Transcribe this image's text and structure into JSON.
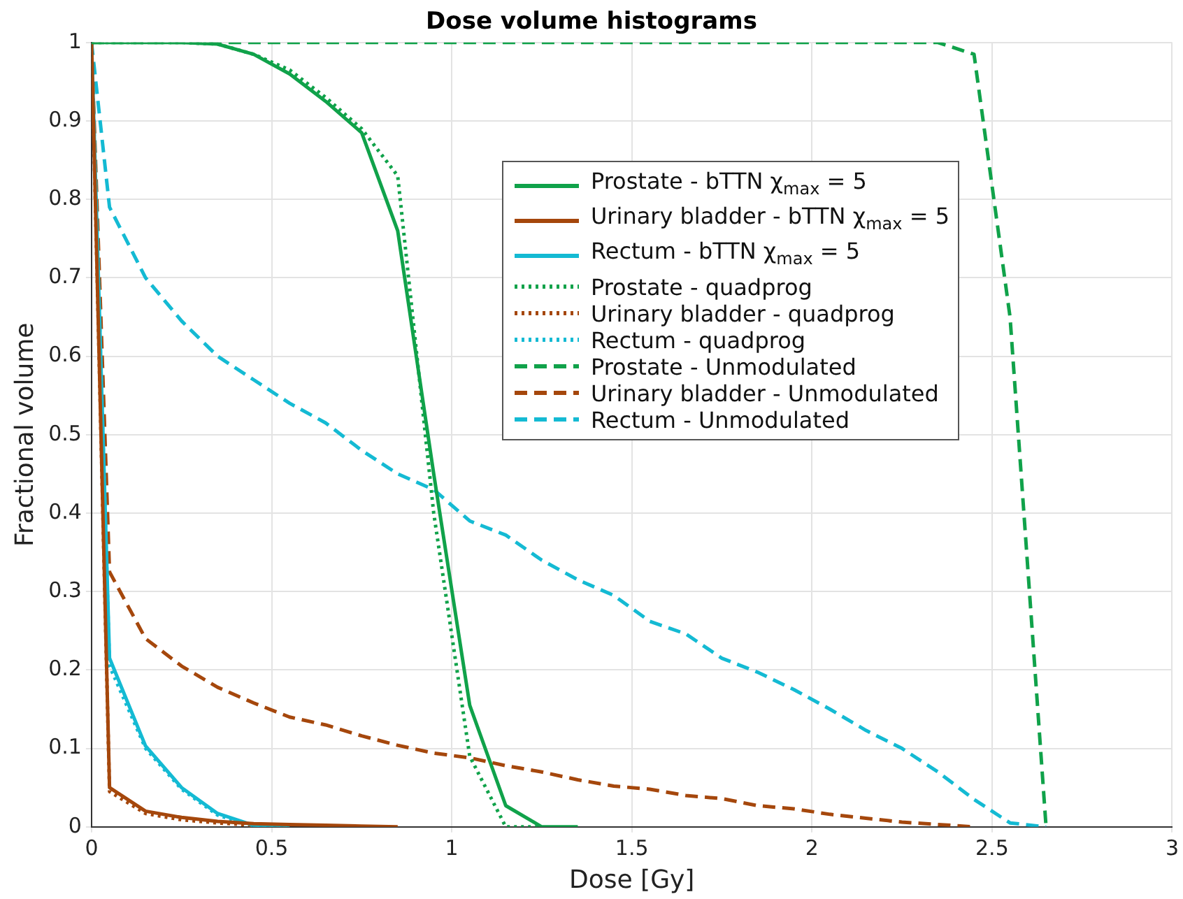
{
  "chart_data": {
    "type": "line",
    "title": "Dose volume histograms",
    "xlabel": "Dose [Gy]",
    "ylabel": "Fractional volume",
    "xlim": [
      0,
      3
    ],
    "xticks": [
      0,
      0.5,
      1,
      1.5,
      2,
      2.5,
      3
    ],
    "ylim": [
      0,
      1
    ],
    "yticks": [
      0,
      0.1,
      0.2,
      0.3,
      0.4,
      0.5,
      0.6,
      0.7,
      0.8,
      0.9,
      1
    ],
    "grid": true,
    "legend": "top right",
    "marker": "none",
    "series": [
      {
        "name": "Prostate - bTTN χ$_{max}$ = 5",
        "color": "#10a24a",
        "line_style": "solid",
        "x": [
          0,
          0.05,
          0.15,
          0.25,
          0.35,
          0.45,
          0.55,
          0.65,
          0.75,
          0.85,
          0.95,
          1.05,
          1.15,
          1.25,
          1.35
        ],
        "values": [
          1,
          1,
          1,
          1,
          0.998,
          0.985,
          0.96,
          0.925,
          0.885,
          0.76,
          0.45,
          0.155,
          0.027,
          0,
          0
        ]
      },
      {
        "name": "Urinary bladder - bTTN χ$_{max}$ = 5",
        "color": "#a5470c",
        "line_style": "solid",
        "x": [
          0,
          0.05,
          0.15,
          0.25,
          0.35,
          0.45,
          0.55,
          0.65,
          0.75,
          0.85
        ],
        "values": [
          1,
          0.05,
          0.02,
          0.012,
          0.007,
          0.004,
          0.003,
          0.002,
          0.001,
          0
        ]
      },
      {
        "name": "Rectum - bTTN χ$_{max}$ = 5",
        "color": "#14bad3",
        "line_style": "solid",
        "x": [
          0,
          0.05,
          0.15,
          0.25,
          0.35,
          0.45,
          0.55
        ],
        "values": [
          1,
          0.215,
          0.103,
          0.05,
          0.017,
          0.002,
          0
        ]
      },
      {
        "name": "Prostate - quadprog",
        "color": "#10a24a",
        "line_style": "dotted",
        "x": [
          0,
          0.05,
          0.15,
          0.25,
          0.35,
          0.45,
          0.55,
          0.65,
          0.75,
          0.85,
          0.95,
          1.05,
          1.15,
          1.25
        ],
        "values": [
          1,
          1,
          1,
          1,
          0.998,
          0.985,
          0.965,
          0.93,
          0.89,
          0.83,
          0.4,
          0.09,
          0,
          0
        ]
      },
      {
        "name": "Urinary bladder - quadprog",
        "color": "#a5470c",
        "line_style": "dotted",
        "x": [
          0,
          0.05,
          0.15,
          0.25,
          0.35,
          0.45,
          0.55
        ],
        "values": [
          1,
          0.045,
          0.017,
          0.009,
          0.005,
          0.002,
          0
        ]
      },
      {
        "name": "Rectum - quadprog",
        "color": "#14bad3",
        "line_style": "dotted",
        "x": [
          0,
          0.05,
          0.15,
          0.25,
          0.35,
          0.45,
          0.55
        ],
        "values": [
          1,
          0.205,
          0.1,
          0.048,
          0.015,
          0.001,
          0
        ]
      },
      {
        "name": "Prostate - Unmodulated",
        "color": "#10a24a",
        "line_style": "dashed",
        "x": [
          0,
          0.05,
          0.15,
          0.25,
          0.35,
          0.45,
          0.55,
          0.65,
          0.75,
          0.85,
          0.95,
          1.05,
          1.15,
          1.25,
          1.35,
          1.45,
          1.55,
          1.65,
          1.75,
          1.85,
          1.95,
          2.05,
          2.15,
          2.25,
          2.35,
          2.45,
          2.55,
          2.65
        ],
        "values": [
          1,
          1,
          1,
          1,
          1,
          1,
          1,
          1,
          1,
          1,
          1,
          1,
          1,
          1,
          1,
          1,
          1,
          1,
          1,
          1,
          1,
          1,
          1,
          1,
          1,
          0.985,
          0.65,
          0
        ]
      },
      {
        "name": "Urinary bladder - Unmodulated",
        "color": "#a5470c",
        "line_style": "dashed",
        "x": [
          0,
          0.05,
          0.15,
          0.25,
          0.35,
          0.45,
          0.55,
          0.65,
          0.75,
          0.85,
          0.95,
          1.05,
          1.15,
          1.25,
          1.35,
          1.45,
          1.55,
          1.65,
          1.75,
          1.85,
          1.95,
          2.05,
          2.15,
          2.25,
          2.35,
          2.45
        ],
        "values": [
          1,
          0.325,
          0.24,
          0.205,
          0.178,
          0.158,
          0.14,
          0.13,
          0.116,
          0.104,
          0.094,
          0.088,
          0.078,
          0.07,
          0.06,
          0.052,
          0.048,
          0.04,
          0.036,
          0.027,
          0.023,
          0.016,
          0.011,
          0.006,
          0.003,
          0
        ]
      },
      {
        "name": "Rectum - Unmodulated",
        "color": "#14bad3",
        "line_style": "dashed",
        "x": [
          0,
          0.05,
          0.15,
          0.25,
          0.35,
          0.45,
          0.55,
          0.65,
          0.75,
          0.85,
          0.95,
          1.05,
          1.15,
          1.25,
          1.35,
          1.45,
          1.55,
          1.65,
          1.75,
          1.85,
          1.95,
          2.05,
          2.15,
          2.25,
          2.35,
          2.45,
          2.55,
          2.65
        ],
        "values": [
          1,
          0.79,
          0.7,
          0.645,
          0.6,
          0.57,
          0.54,
          0.515,
          0.48,
          0.45,
          0.43,
          0.39,
          0.372,
          0.34,
          0.315,
          0.295,
          0.262,
          0.246,
          0.215,
          0.197,
          0.175,
          0.15,
          0.123,
          0.1,
          0.07,
          0.035,
          0.005,
          0
        ]
      }
    ]
  }
}
